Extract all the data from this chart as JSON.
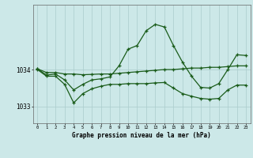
{
  "title": "Graphe pression niveau de la mer (hPa)",
  "bg_color": "#cce8e8",
  "line_color": "#1a5c1a",
  "grid_color": "#aacccc",
  "x_ticks": [
    0,
    1,
    2,
    3,
    4,
    5,
    6,
    7,
    8,
    9,
    10,
    11,
    12,
    13,
    14,
    15,
    16,
    17,
    18,
    19,
    20,
    21,
    22,
    23
  ],
  "ylim": [
    1032.55,
    1035.75
  ],
  "yticks": [
    1033,
    1034
  ],
  "figsize": [
    3.2,
    2.0
  ],
  "dpi": 100,
  "series1_x": [
    0,
    1,
    2,
    3,
    4,
    5,
    6,
    7,
    8,
    9,
    10,
    11,
    12,
    13,
    14,
    15,
    16,
    17,
    18,
    19,
    20,
    21,
    22,
    23
  ],
  "series1_y": [
    1034.02,
    1033.92,
    1033.92,
    1033.88,
    1033.88,
    1033.86,
    1033.87,
    1033.88,
    1033.88,
    1033.9,
    1033.92,
    1033.94,
    1033.96,
    1033.98,
    1034.0,
    1034.0,
    1034.02,
    1034.04,
    1034.04,
    1034.06,
    1034.06,
    1034.08,
    1034.1,
    1034.1
  ],
  "series2_x": [
    0,
    1,
    2,
    3,
    4,
    5,
    6,
    7,
    8,
    9,
    10,
    11,
    12,
    13,
    14,
    15,
    16,
    17,
    18,
    19,
    20,
    21,
    22,
    23
  ],
  "series2_y": [
    1034.02,
    1033.85,
    1033.88,
    1033.72,
    1033.45,
    1033.6,
    1033.72,
    1033.75,
    1033.8,
    1034.1,
    1034.55,
    1034.65,
    1035.05,
    1035.22,
    1035.15,
    1034.65,
    1034.2,
    1033.82,
    1033.52,
    1033.5,
    1033.62,
    1034.0,
    1034.4,
    1034.38
  ],
  "series3_x": [
    0,
    1,
    2,
    3,
    4,
    5,
    6,
    7,
    8,
    9,
    10,
    11,
    12,
    13,
    14,
    15,
    16,
    17,
    18,
    19,
    20,
    21,
    22,
    23
  ],
  "series3_y": [
    1034.0,
    1033.82,
    1033.82,
    1033.6,
    1033.1,
    1033.35,
    1033.48,
    1033.55,
    1033.6,
    1033.6,
    1033.62,
    1033.62,
    1033.62,
    1033.64,
    1033.65,
    1033.5,
    1033.35,
    1033.28,
    1033.22,
    1033.2,
    1033.22,
    1033.45,
    1033.58,
    1033.58
  ]
}
